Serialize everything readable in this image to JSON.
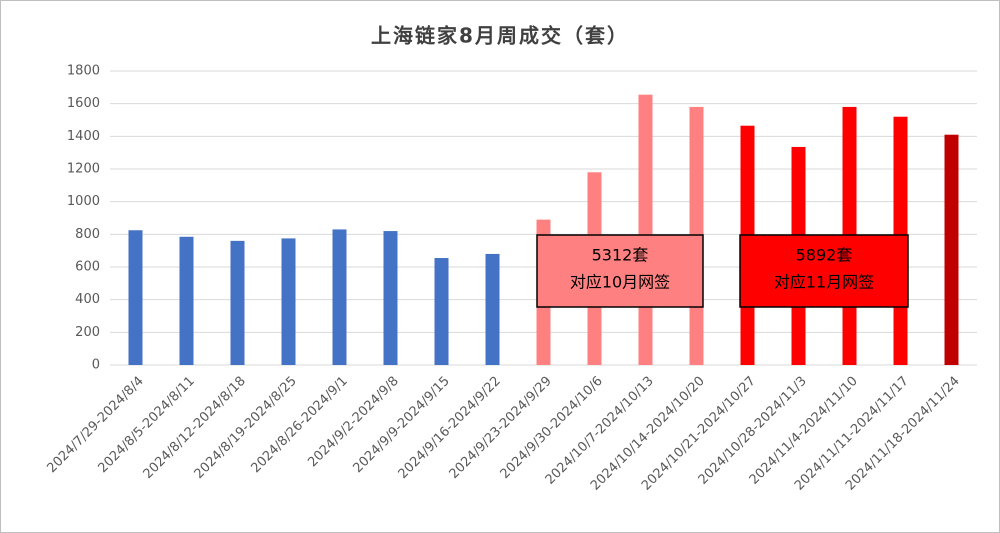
{
  "chart_data": {
    "type": "bar",
    "title": "上海链家8月周成交（套）",
    "categories": [
      "2024/7/29-2024/8/4",
      "2024/8/5-2024/8/11",
      "2024/8/12-2024/8/18",
      "2024/8/19-2024/8/25",
      "2024/8/26-2024/9/1",
      "2024/9/2-2024/9/8",
      "2024/9/9-2024/9/15",
      "2024/9/16-2024/9/22",
      "2024/9/23-2024/9/29",
      "2024/9/30-2024/10/6",
      "2024/10/7-2024/10/13",
      "2024/10/14-2024/10/20",
      "2024/10/21-2024/10/27",
      "2024/10/28-2024/11/3",
      "2024/11/4-2024/11/10",
      "2024/11/11-2024/11/17",
      "2024/11/18-2024/11/24"
    ],
    "values": [
      825,
      785,
      760,
      775,
      830,
      820,
      655,
      680,
      890,
      1180,
      1655,
      1580,
      1465,
      1335,
      1580,
      1520,
      1410
    ],
    "colors": [
      "#4472c4",
      "#4472c4",
      "#4472c4",
      "#4472c4",
      "#4472c4",
      "#4472c4",
      "#4472c4",
      "#4472c4",
      "#ff8080",
      "#ff8080",
      "#ff8080",
      "#ff8080",
      "#ff0000",
      "#ff0000",
      "#ff0000",
      "#ff0000",
      "#c00000"
    ],
    "ylim": [
      0,
      1800
    ],
    "yticks": [
      0,
      200,
      400,
      600,
      800,
      1000,
      1200,
      1400,
      1600,
      1800
    ],
    "grid": true,
    "annotations": [
      {
        "lines": [
          "5312套",
          "对应10月网签"
        ],
        "color": "#ff8080"
      },
      {
        "lines": [
          "5892套",
          "对应11月网签"
        ],
        "color": "#ff0000"
      }
    ]
  }
}
